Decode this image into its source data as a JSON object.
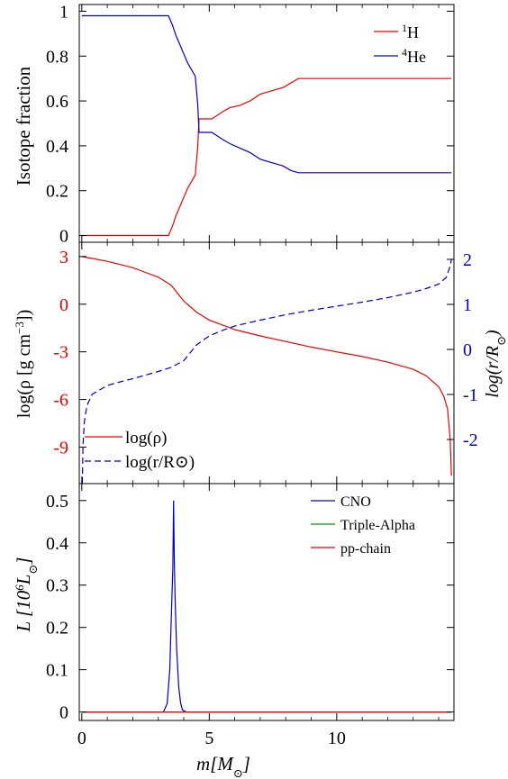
{
  "colors": {
    "red": "#ee0000",
    "blue": "#0000cc",
    "green": "#009900",
    "axis": "#000000"
  },
  "xlabel": "m[M",
  "xlabel_sub": "⊙",
  "xlabel_end": "]",
  "x_ticks": [
    "0",
    "5",
    "10"
  ],
  "chart_data": [
    {
      "type": "line",
      "ylabel": "Isotope fraction",
      "xlim": [
        -0.1,
        14.6
      ],
      "ylim": [
        -0.03,
        1.03
      ],
      "y_ticks": [
        "0",
        "0.2",
        "0.4",
        "0.6",
        "0.8",
        "1"
      ],
      "y_tick_values": [
        0,
        0.2,
        0.4,
        0.6,
        0.8,
        1
      ],
      "legend": [
        "1H",
        "4He"
      ],
      "legend_sup": [
        "1",
        "4"
      ],
      "legend_base": [
        "H",
        "He"
      ],
      "series": [
        {
          "name": "1H",
          "color": "#ee0000",
          "x": [
            0,
            3.4,
            3.55,
            3.7,
            3.85,
            4.0,
            4.15,
            4.3,
            4.45,
            4.55,
            4.6,
            4.6,
            5.1,
            5.5,
            5.8,
            6.2,
            6.6,
            7.0,
            7.3,
            7.6,
            7.9,
            8.2,
            8.5,
            8.6,
            14.5
          ],
          "y": [
            0,
            0,
            0.04,
            0.09,
            0.13,
            0.17,
            0.21,
            0.24,
            0.27,
            0.4,
            0.52,
            0.52,
            0.52,
            0.55,
            0.57,
            0.58,
            0.6,
            0.63,
            0.64,
            0.65,
            0.66,
            0.68,
            0.7,
            0.7,
            0.7
          ]
        },
        {
          "name": "4He",
          "color": "#0000cc",
          "x": [
            0,
            3.4,
            3.55,
            3.7,
            3.85,
            4.0,
            4.15,
            4.3,
            4.45,
            4.55,
            4.6,
            4.6,
            5.1,
            5.5,
            5.8,
            6.2,
            6.6,
            7.0,
            7.3,
            7.6,
            7.9,
            8.2,
            8.5,
            8.6,
            14.5
          ],
          "y": [
            0.98,
            0.98,
            0.94,
            0.89,
            0.85,
            0.81,
            0.77,
            0.74,
            0.71,
            0.58,
            0.46,
            0.46,
            0.46,
            0.43,
            0.41,
            0.39,
            0.37,
            0.34,
            0.33,
            0.32,
            0.31,
            0.29,
            0.28,
            0.28,
            0.28
          ]
        }
      ]
    },
    {
      "type": "line",
      "ylabel": "log(ρ [g cm",
      "ylabel_sup": "−3",
      "ylabel_end": "])",
      "y2label": "log(r/R",
      "y2label_sub": "⊙",
      "y2label_end": ")",
      "xlim": [
        -0.1,
        14.6
      ],
      "ylim": [
        -11.3,
        3.9
      ],
      "y2lim": [
        -2.98,
        2.38
      ],
      "y_ticks": [
        "3",
        "0",
        "-3",
        "-6",
        "-9"
      ],
      "y_tick_values": [
        3,
        0,
        -3,
        -6,
        -9
      ],
      "y2_ticks": [
        "2",
        "1",
        "0",
        "-1",
        "-2"
      ],
      "y2_tick_values": [
        2,
        1,
        0,
        -1,
        -2
      ],
      "legend": [
        "log(ρ)",
        "log(r/R⊙)"
      ],
      "series": [
        {
          "name": "log(ρ)",
          "color": "#ee0000",
          "axis": "left",
          "x": [
            0,
            0.5,
            1.0,
            1.5,
            2.0,
            2.5,
            3.0,
            3.5,
            4.0,
            4.5,
            4.7,
            5.0,
            6.0,
            7.0,
            8.0,
            9.0,
            10.0,
            11.0,
            12.0,
            13.0,
            13.5,
            14.0,
            14.2,
            14.35,
            14.45,
            14.5
          ],
          "y": [
            3.0,
            2.85,
            2.7,
            2.5,
            2.3,
            2.0,
            1.7,
            1.2,
            0.2,
            -0.5,
            -0.7,
            -1.0,
            -1.6,
            -2.0,
            -2.35,
            -2.7,
            -3.0,
            -3.3,
            -3.65,
            -4.1,
            -4.5,
            -5.2,
            -5.8,
            -6.6,
            -8.5,
            -10.8
          ]
        },
        {
          "name": "log(r/R⊙)",
          "color": "#0000cc",
          "axis": "right",
          "dashed": true,
          "x": [
            0.02,
            0.05,
            0.1,
            0.2,
            0.4,
            0.7,
            1.0,
            1.5,
            2.0,
            2.5,
            3.0,
            3.5,
            4.0,
            4.5,
            5.0,
            5.5,
            6.0,
            7.0,
            8.0,
            9.0,
            10.0,
            11.0,
            12.0,
            13.0,
            13.5,
            14.0,
            14.3,
            14.45,
            14.5
          ],
          "y": [
            -2.98,
            -2.1,
            -1.6,
            -1.25,
            -1.0,
            -0.9,
            -0.8,
            -0.72,
            -0.65,
            -0.57,
            -0.49,
            -0.4,
            -0.25,
            0.1,
            0.3,
            0.42,
            0.52,
            0.65,
            0.77,
            0.87,
            0.96,
            1.05,
            1.15,
            1.27,
            1.35,
            1.45,
            1.6,
            1.85,
            2.0
          ]
        }
      ]
    },
    {
      "type": "line",
      "ylabel": "L [10",
      "ylabel_sup": "6",
      "ylabel_end": "L",
      "ylabel_sub": "⊙",
      "ylabel_close": "]",
      "xlim": [
        -0.1,
        14.6
      ],
      "ylim": [
        -0.02,
        0.54
      ],
      "y_ticks": [
        "0",
        "0.1",
        "0.2",
        "0.3",
        "0.4",
        "0.5"
      ],
      "y_tick_values": [
        0,
        0.1,
        0.2,
        0.3,
        0.4,
        0.5
      ],
      "legend": [
        "CNO",
        "Triple-Alpha",
        "pp-chain"
      ],
      "series": [
        {
          "name": "CNO",
          "color": "#0000cc",
          "x": [
            0,
            3.2,
            3.35,
            3.45,
            3.52,
            3.57,
            3.6,
            3.63,
            3.66,
            3.72,
            3.8,
            3.88,
            3.95,
            4.1,
            14.5
          ],
          "y": [
            0,
            0,
            0.02,
            0.1,
            0.24,
            0.34,
            0.5,
            0.35,
            0.27,
            0.15,
            0.06,
            0.02,
            0.005,
            0,
            0
          ]
        },
        {
          "name": "Triple-Alpha",
          "color": "#009900",
          "x": [
            0,
            14.5
          ],
          "y": [
            0,
            0
          ]
        },
        {
          "name": "pp-chain",
          "color": "#ee0000",
          "x": [
            0,
            14.5
          ],
          "y": [
            0,
            0
          ]
        }
      ]
    }
  ]
}
